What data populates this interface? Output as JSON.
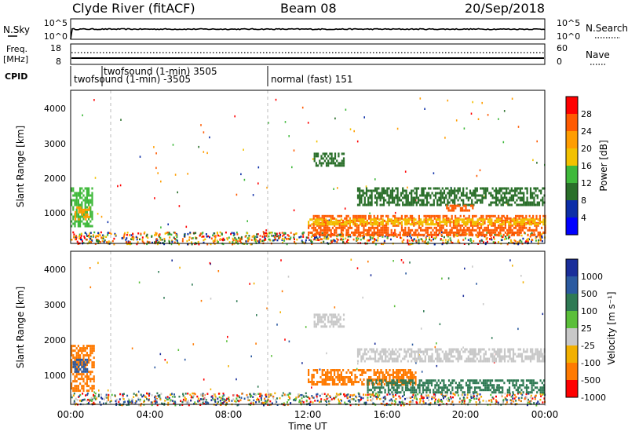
{
  "header": {
    "station": "Clyde River (fitACF)",
    "beam": "Beam 08",
    "date": "20/Sep/2018"
  },
  "chart_data": [
    {
      "type": "line",
      "panel": "noise",
      "left_label": "N.Sky",
      "right_label": "N.Search",
      "y_ticks_left": [
        "10^5",
        "10^0"
      ],
      "y_ticks_right": [
        "10^5",
        "10^0"
      ],
      "scale": "log",
      "ylim": [
        1,
        100000
      ],
      "sky_level_approx": 300
    },
    {
      "type": "line",
      "panel": "frequency",
      "left_label_1": "Freq.",
      "left_label_2": "[MHz]",
      "right_label": "Nave",
      "y_ticks_left": [
        "18",
        "8"
      ],
      "y_ticks_right": [
        "60",
        "0"
      ],
      "freq_mhz_approx": 10.5,
      "nave_approx": 34
    },
    {
      "type": "table",
      "panel": "cpid",
      "label": "CPID",
      "entries": [
        {
          "text": "twofsound (1-min) -3505",
          "start_hour": 0,
          "row": "lower"
        },
        {
          "text": "twofsound (1-min) 3505",
          "start_hour": 2,
          "row": "upper"
        },
        {
          "text": "normal (fast) 151",
          "start_hour": 10,
          "row": "lower"
        }
      ]
    },
    {
      "type": "heatmap",
      "panel": "power",
      "ylabel": "Slant Range [km]",
      "y_ticks": [
        "1000",
        "2000",
        "3000",
        "4000"
      ],
      "ylim": [
        180,
        4600
      ],
      "xlim_hours": [
        0,
        24
      ],
      "colorbar_label": "Power [dB]",
      "colorbar_ticks": [
        "28",
        "24",
        "20",
        "16",
        "12",
        "8",
        "4"
      ],
      "colorbar_colors": [
        "#ff0000",
        "#ff5a00",
        "#ff9d00",
        "#f2c100",
        "#3fb93b",
        "#2a6f2a",
        "#0c2ea8",
        "#0000ff"
      ],
      "regions": [
        {
          "t0": 0.0,
          "t1": 1.1,
          "r0": 700,
          "r1": 1800,
          "value": 14
        },
        {
          "t0": 0.2,
          "t1": 0.9,
          "r0": 850,
          "r1": 1250,
          "value": 22
        },
        {
          "t0": 12.0,
          "t1": 24.0,
          "r0": 400,
          "r1": 1000,
          "value": 27
        },
        {
          "t0": 12.0,
          "t1": 24.0,
          "r0": 700,
          "r1": 900,
          "value": 18
        },
        {
          "t0": 14.5,
          "t1": 24.0,
          "r0": 1300,
          "r1": 1800,
          "value": 11
        },
        {
          "t0": 12.3,
          "t1": 13.8,
          "r0": 2400,
          "r1": 2800,
          "value": 8
        },
        {
          "t0": 19.0,
          "t1": 20.5,
          "r0": 1100,
          "r1": 1300,
          "value": 26
        }
      ]
    },
    {
      "type": "heatmap",
      "panel": "velocity",
      "ylabel": "Slant Range [km]",
      "y_ticks": [
        "1000",
        "2000",
        "3000",
        "4000"
      ],
      "ylim": [
        180,
        4600
      ],
      "xlim_hours": [
        0,
        24
      ],
      "xlabel": "Time UT",
      "x_ticks": [
        "00:00",
        "04:00",
        "08:00",
        "12:00",
        "16:00",
        "20:00",
        "00:00"
      ],
      "colorbar_label": "Velocity [m s⁻¹]",
      "colorbar_ticks": [
        "1000",
        "500",
        "100",
        "25",
        "-25",
        "-100",
        "-500",
        "-1000"
      ],
      "colorbar_colors": [
        "#1a2e9a",
        "#2b5aa0",
        "#2f7a54",
        "#5bbf3a",
        "#c8c8c8",
        "#f2b000",
        "#ff7a00",
        "#ff0000"
      ],
      "regions": [
        {
          "t0": 0.0,
          "t1": 1.2,
          "r0": 600,
          "r1": 1900,
          "value": -300
        },
        {
          "t0": 0.1,
          "t1": 0.8,
          "r0": 1100,
          "r1": 1500,
          "value": 600
        },
        {
          "t0": 12.0,
          "t1": 17.5,
          "r0": 750,
          "r1": 1200,
          "value": -200
        },
        {
          "t0": 15.0,
          "t1": 24.0,
          "r0": 500,
          "r1": 900,
          "value": 150
        },
        {
          "t0": 14.5,
          "t1": 24.0,
          "r0": 1400,
          "r1": 1800,
          "value": 0
        },
        {
          "t0": 12.3,
          "t1": 13.8,
          "r0": 2400,
          "r1": 2800,
          "value": 0
        }
      ]
    }
  ]
}
